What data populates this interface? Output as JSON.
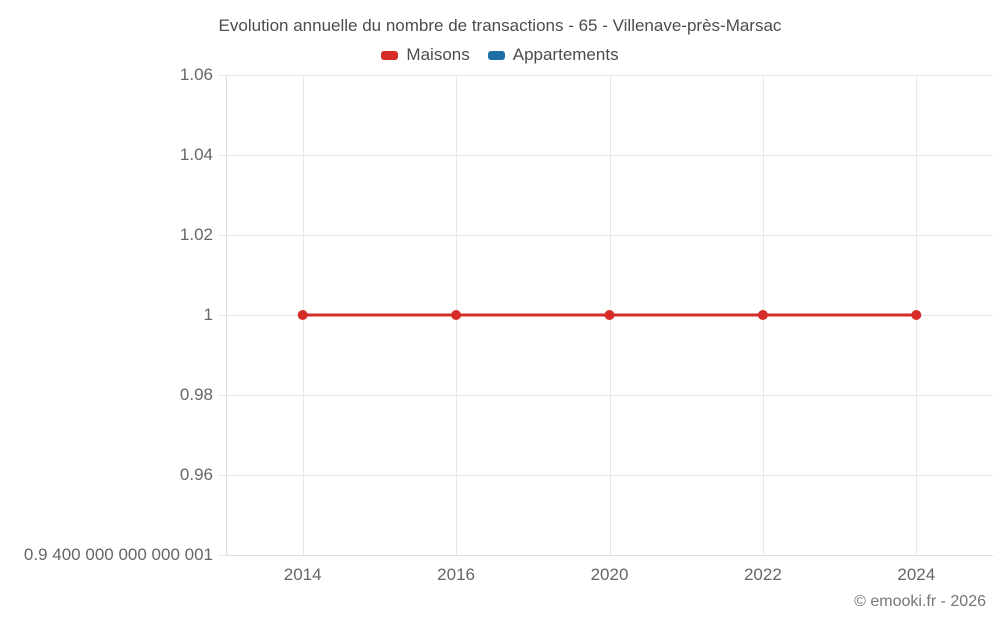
{
  "chart": {
    "credit": "© emooki.fr - 2026"
  },
  "chart_data": {
    "type": "line",
    "title": "Evolution annuelle du nombre de transactions - 65 - Villenave-près-Marsac",
    "categories": [
      "2014",
      "2016",
      "2020",
      "2022",
      "2024"
    ],
    "series": [
      {
        "name": "Maisons",
        "color": "#d62d28",
        "values": [
          1,
          1,
          1,
          1,
          1
        ]
      },
      {
        "name": "Appartements",
        "color": "#1d6fa5",
        "values": []
      }
    ],
    "xlabel": "",
    "ylabel": "",
    "ylim": [
      0.94,
      1.06
    ],
    "yticks": [
      {
        "value": 1.06,
        "label": "1.06"
      },
      {
        "value": 1.04,
        "label": "1.04"
      },
      {
        "value": 1.02,
        "label": "1.02"
      },
      {
        "value": 1.0,
        "label": "1"
      },
      {
        "value": 0.98,
        "label": "0.98"
      },
      {
        "value": 0.96,
        "label": "0.96"
      },
      {
        "value": 0.94,
        "label": "0.9 400 000 000 000 001"
      }
    ],
    "grid": true,
    "legend_position": "top"
  }
}
